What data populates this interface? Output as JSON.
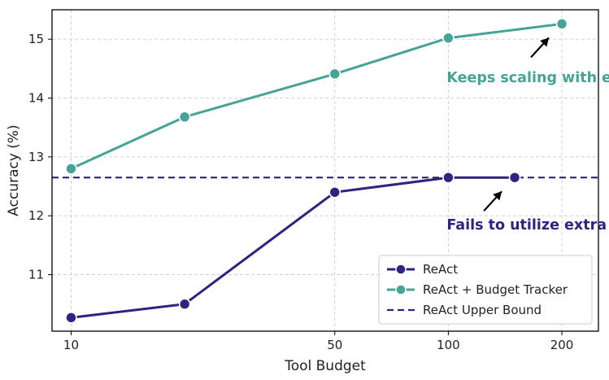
{
  "chart_data": {
    "type": "line",
    "xlabel": "Tool Budget",
    "ylabel": "Accuracy (%)",
    "x_scale": "log",
    "x_ticks": [
      10,
      50,
      100,
      200
    ],
    "y_ticks": [
      11,
      12,
      13,
      14,
      15
    ],
    "xlim": [
      8.9,
      250
    ],
    "ylim": [
      10.04,
      15.5
    ],
    "grid": true,
    "legend_position": "lower-right",
    "series": [
      {
        "name": "ReAct",
        "color": "#2e2380",
        "style": "solid",
        "marker": "circle",
        "x": [
          10,
          20,
          50,
          100,
          150
        ],
        "y": [
          10.27,
          10.5,
          12.4,
          12.65,
          12.65
        ]
      },
      {
        "name": "ReAct + Budget Tracker",
        "color": "#45a495",
        "style": "solid",
        "marker": "circle",
        "x": [
          10,
          20,
          50,
          100,
          200
        ],
        "y": [
          12.8,
          13.68,
          14.41,
          15.02,
          15.26
        ]
      },
      {
        "name": "ReAct Upper Bound",
        "color": "#2e2380",
        "style": "dashed",
        "marker": "none",
        "y_constant": 12.65
      }
    ],
    "annotations": [
      {
        "text": "Keeps scaling with extra budget",
        "color": "#45a495",
        "anchor_x": 200,
        "anchor_y": 15.26,
        "text_x": 99,
        "text_y": 14.27
      },
      {
        "text": "Fails to utilize extra budget",
        "color": "#2e2380",
        "anchor_x": 150,
        "anchor_y": 12.65,
        "text_x": 99,
        "text_y": 11.77
      }
    ]
  }
}
